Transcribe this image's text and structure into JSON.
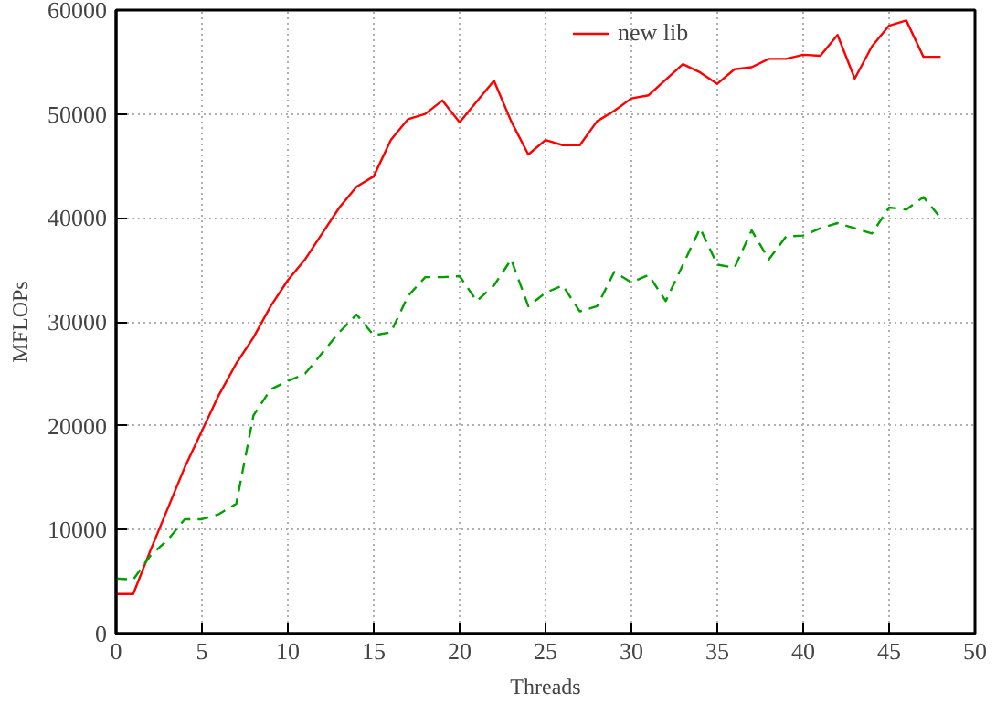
{
  "chart_data": {
    "type": "line",
    "xlabel": "Threads",
    "ylabel": "MFLOPs",
    "xlim": [
      0,
      50
    ],
    "ylim": [
      0,
      60000
    ],
    "xticks": [
      0,
      5,
      10,
      15,
      20,
      25,
      30,
      35,
      40,
      45,
      50
    ],
    "yticks": [
      0,
      10000,
      20000,
      30000,
      40000,
      50000,
      60000
    ],
    "grid": true,
    "legend": "top right",
    "x": [
      0,
      1,
      2,
      3,
      4,
      5,
      6,
      7,
      8,
      9,
      10,
      11,
      12,
      13,
      14,
      15,
      16,
      17,
      18,
      19,
      20,
      21,
      22,
      23,
      24,
      25,
      26,
      27,
      28,
      29,
      30,
      31,
      32,
      33,
      34,
      35,
      36,
      37,
      38,
      39,
      40,
      41,
      42,
      43,
      44,
      45,
      46,
      47,
      48
    ],
    "series": [
      {
        "name": "new lib",
        "color": "#ff0000",
        "line_style": "solid",
        "values": [
          3800,
          3800,
          8000,
          12000,
          16000,
          19500,
          23000,
          26000,
          28500,
          31500,
          34000,
          36000,
          38500,
          41000,
          43000,
          44000,
          47500,
          49500,
          50000,
          51300,
          49200,
          51200,
          53200,
          49300,
          46100,
          47500,
          47000,
          47000,
          49300,
          50300,
          51500,
          51800,
          53300,
          54800,
          54000,
          52900,
          54300,
          54500,
          55300,
          55300,
          55700,
          55600,
          57600,
          53400,
          56500,
          58500,
          59000,
          55500,
          55500
        ]
      },
      {
        "color": "#00a000",
        "line_style": "dashed",
        "values": [
          5300,
          5200,
          7500,
          9000,
          11000,
          11000,
          11500,
          12500,
          21000,
          23500,
          24300,
          25000,
          27000,
          29000,
          30700,
          28700,
          29000,
          32500,
          34300,
          34300,
          34400,
          32000,
          33500,
          36000,
          31500,
          32800,
          33500,
          31000,
          31500,
          34800,
          33800,
          34500,
          32000,
          35500,
          39000,
          35500,
          35200,
          38800,
          36000,
          38200,
          38300,
          39000,
          39500,
          39000,
          38500,
          41000,
          40800,
          42000,
          40000
        ]
      }
    ]
  }
}
